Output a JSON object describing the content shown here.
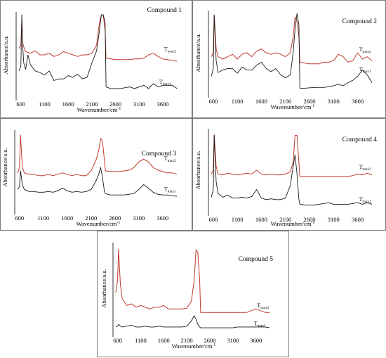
{
  "chart_data": [
    {
      "type": "line",
      "title": "Compound 1",
      "xlabel": "Wavenumber/cm",
      "xlabel_sup": "-1",
      "ylabel": "Absorbance/a.u.",
      "xticks": [
        600,
        1100,
        1600,
        2100,
        2600,
        3100,
        3600
      ],
      "xlim": [
        500,
        4000
      ],
      "ylim": [
        0,
        1
      ],
      "series_labels": [
        {
          "main": "T",
          "sub": "max2"
        },
        {
          "main": "T",
          "sub": "max1"
        }
      ],
      "series": [
        {
          "color": "#c0392b",
          "x": [
            560,
            600,
            620,
            640,
            660,
            700,
            800,
            900,
            1000,
            1100,
            1200,
            1300,
            1400,
            1500,
            1600,
            1700,
            1800,
            1900,
            2000,
            2100,
            2200,
            2260,
            2300,
            2340,
            2380,
            2400,
            2500,
            2600,
            2700,
            2800,
            2900,
            3000,
            3100,
            3200,
            3300,
            3400,
            3500,
            3600,
            3700,
            3800,
            3900
          ],
          "y": [
            0.58,
            0.62,
            0.92,
            0.65,
            0.6,
            0.54,
            0.52,
            0.55,
            0.5,
            0.5,
            0.52,
            0.48,
            0.5,
            0.54,
            0.52,
            0.5,
            0.48,
            0.5,
            0.5,
            0.52,
            0.62,
            0.9,
            1.0,
            1.0,
            0.8,
            0.46,
            0.45,
            0.44,
            0.44,
            0.44,
            0.44,
            0.45,
            0.45,
            0.46,
            0.5,
            0.52,
            0.48,
            0.45,
            0.44,
            0.43,
            0.42
          ]
        },
        {
          "color": "#1a1a1a",
          "x": [
            560,
            600,
            620,
            640,
            660,
            700,
            750,
            800,
            900,
            1000,
            1100,
            1200,
            1300,
            1400,
            1500,
            1600,
            1700,
            1800,
            1900,
            2000,
            2100,
            2200,
            2260,
            2300,
            2340,
            2380,
            2400,
            2500,
            2700,
            2900,
            3000,
            3100,
            3200,
            3300,
            3400,
            3500,
            3600,
            3700,
            3800,
            3900
          ],
          "y": [
            0.3,
            0.35,
            1.0,
            0.6,
            0.4,
            0.32,
            0.5,
            0.38,
            0.3,
            0.28,
            0.25,
            0.3,
            0.18,
            0.2,
            0.2,
            0.24,
            0.22,
            0.26,
            0.2,
            0.22,
            0.4,
            0.55,
            0.8,
            1.0,
            1.0,
            0.9,
            0.1,
            0.08,
            0.08,
            0.1,
            0.08,
            0.1,
            0.12,
            0.08,
            0.14,
            0.1,
            0.12,
            0.12,
            0.12,
            0.08
          ]
        }
      ]
    },
    {
      "type": "line",
      "title": "Compound 2",
      "xlabel": "Wavenumber/cm",
      "xlabel_sup": "-1",
      "ylabel": "Absorbance/a.u.",
      "xticks": [
        600,
        1100,
        1600,
        2100,
        2600,
        3100,
        3600
      ],
      "xlim": [
        500,
        4000
      ],
      "ylim": [
        0,
        1
      ],
      "series_labels": [
        {
          "main": "T",
          "sub": "max2"
        },
        {
          "main": "T",
          "sub": "max1"
        }
      ],
      "series": [
        {
          "color": "#c0392b",
          "x": [
            560,
            600,
            620,
            660,
            700,
            800,
            900,
            1000,
            1100,
            1200,
            1300,
            1400,
            1500,
            1600,
            1700,
            1800,
            1900,
            2000,
            2100,
            2200,
            2260,
            2300,
            2340,
            2380,
            2400,
            2500,
            2600,
            2700,
            2800,
            2900,
            3000,
            3100,
            3200,
            3300,
            3400,
            3500,
            3600,
            3700,
            3800,
            3900
          ],
          "y": [
            0.45,
            0.5,
            0.98,
            0.55,
            0.45,
            0.42,
            0.45,
            0.48,
            0.42,
            0.48,
            0.5,
            0.45,
            0.52,
            0.55,
            0.5,
            0.48,
            0.5,
            0.48,
            0.45,
            0.5,
            0.7,
            0.95,
            0.9,
            0.7,
            0.38,
            0.37,
            0.36,
            0.36,
            0.36,
            0.38,
            0.38,
            0.4,
            0.48,
            0.45,
            0.38,
            0.4,
            0.5,
            0.42,
            0.45,
            0.4
          ]
        },
        {
          "color": "#1a1a1a",
          "x": [
            560,
            600,
            620,
            660,
            700,
            800,
            900,
            1000,
            1100,
            1200,
            1300,
            1400,
            1500,
            1600,
            1700,
            1800,
            1900,
            2000,
            2100,
            2200,
            2260,
            2300,
            2340,
            2380,
            2400,
            2500,
            2700,
            2900,
            3000,
            3100,
            3200,
            3300,
            3400,
            3500,
            3600,
            3700,
            3800,
            3900
          ],
          "y": [
            0.2,
            0.3,
            0.98,
            0.4,
            0.25,
            0.28,
            0.3,
            0.3,
            0.24,
            0.32,
            0.28,
            0.28,
            0.34,
            0.38,
            0.3,
            0.26,
            0.3,
            0.22,
            0.18,
            0.22,
            0.5,
            0.8,
            1.0,
            0.85,
            0.05,
            0.05,
            0.06,
            0.06,
            0.07,
            0.08,
            0.1,
            0.08,
            0.12,
            0.15,
            0.2,
            0.28,
            0.22,
            0.12
          ]
        }
      ]
    },
    {
      "type": "line",
      "title": "Compound 3",
      "xlabel": "Wavenumber/cm",
      "xlabel_sup": "-1",
      "ylabel": "Absorbance/a.u.",
      "xticks": [
        600,
        1100,
        1600,
        2100,
        2600,
        3100,
        3600
      ],
      "xlim": [
        500,
        4000
      ],
      "ylim": [
        0,
        1
      ],
      "series_labels": [
        {
          "main": "T",
          "sub": "max2"
        },
        {
          "main": "T",
          "sub": "max1"
        }
      ],
      "series": [
        {
          "color": "#c0392b",
          "x": [
            560,
            600,
            620,
            660,
            700,
            800,
            900,
            1000,
            1100,
            1200,
            1300,
            1400,
            1500,
            1600,
            1700,
            1800,
            1900,
            2000,
            2100,
            2200,
            2260,
            2300,
            2340,
            2380,
            2400,
            2500,
            2600,
            2700,
            2800,
            2900,
            3000,
            3100,
            3200,
            3300,
            3400,
            3500,
            3600,
            3700,
            3800,
            3900
          ],
          "y": [
            0.42,
            0.5,
            0.97,
            0.5,
            0.42,
            0.4,
            0.4,
            0.38,
            0.38,
            0.4,
            0.38,
            0.4,
            0.42,
            0.4,
            0.38,
            0.4,
            0.38,
            0.38,
            0.45,
            0.6,
            0.75,
            0.92,
            0.88,
            0.6,
            0.45,
            0.44,
            0.44,
            0.44,
            0.45,
            0.46,
            0.5,
            0.58,
            0.62,
            0.58,
            0.5,
            0.46,
            0.44,
            0.42,
            0.42,
            0.4
          ]
        },
        {
          "color": "#1a1a1a",
          "x": [
            560,
            600,
            620,
            660,
            700,
            800,
            900,
            1000,
            1100,
            1200,
            1300,
            1400,
            1500,
            1600,
            1700,
            1800,
            1900,
            2000,
            2100,
            2200,
            2260,
            2300,
            2340,
            2380,
            2400,
            2500,
            2600,
            2700,
            2800,
            2900,
            3000,
            3100,
            3200,
            3300,
            3400,
            3500,
            3600,
            3700,
            3800,
            3900
          ],
          "y": [
            0.18,
            0.22,
            0.45,
            0.25,
            0.18,
            0.15,
            0.15,
            0.14,
            0.14,
            0.15,
            0.14,
            0.16,
            0.2,
            0.16,
            0.14,
            0.15,
            0.14,
            0.15,
            0.18,
            0.3,
            0.4,
            0.5,
            0.35,
            0.15,
            0.12,
            0.1,
            0.1,
            0.1,
            0.1,
            0.11,
            0.12,
            0.18,
            0.25,
            0.2,
            0.14,
            0.11,
            0.1,
            0.1,
            0.09,
            0.08
          ]
        }
      ]
    },
    {
      "type": "line",
      "title": "Compound 4",
      "xlabel": "Wavenumber/cm",
      "xlabel_sup": "-1",
      "ylabel": "Absorbance/a.u.",
      "xticks": [
        600,
        1100,
        1600,
        2100,
        2600,
        3100,
        3600
      ],
      "xlim": [
        500,
        4000
      ],
      "ylim": [
        0,
        1
      ],
      "series_labels": [
        {
          "main": "T",
          "sub": "max2"
        },
        {
          "main": "T",
          "sub": "max1"
        }
      ],
      "series": [
        {
          "color": "#c0392b",
          "x": [
            560,
            600,
            620,
            660,
            700,
            800,
            900,
            1000,
            1100,
            1200,
            1300,
            1400,
            1500,
            1600,
            1700,
            1800,
            1900,
            2000,
            2100,
            2200,
            2260,
            2300,
            2340,
            2380,
            2400,
            2500,
            2600,
            2700,
            2800,
            2900,
            3000,
            3100,
            3200,
            3300,
            3400,
            3500,
            3600,
            3700,
            3800,
            3900
          ],
          "y": [
            0.45,
            0.5,
            0.96,
            0.55,
            0.45,
            0.44,
            0.46,
            0.45,
            0.44,
            0.45,
            0.46,
            0.45,
            0.5,
            0.45,
            0.44,
            0.45,
            0.44,
            0.44,
            0.45,
            0.48,
            0.6,
            0.95,
            0.95,
            0.6,
            0.42,
            0.42,
            0.42,
            0.42,
            0.42,
            0.42,
            0.42,
            0.42,
            0.42,
            0.42,
            0.42,
            0.43,
            0.45,
            0.44,
            0.46,
            0.44
          ]
        },
        {
          "color": "#1a1a1a",
          "x": [
            560,
            600,
            620,
            660,
            700,
            800,
            900,
            1000,
            1100,
            1200,
            1300,
            1400,
            1500,
            1600,
            1700,
            1800,
            1900,
            2000,
            2100,
            2200,
            2260,
            2300,
            2340,
            2380,
            2400,
            2500,
            2600,
            2700,
            2800,
            2900,
            3000,
            3100,
            3200,
            3300,
            3400,
            3500,
            3600,
            3700,
            3800,
            3900
          ],
          "y": [
            0.15,
            0.25,
            0.95,
            0.35,
            0.2,
            0.15,
            0.18,
            0.14,
            0.14,
            0.15,
            0.14,
            0.16,
            0.25,
            0.14,
            0.12,
            0.13,
            0.12,
            0.12,
            0.14,
            0.3,
            0.55,
            0.7,
            0.45,
            0.12,
            0.06,
            0.05,
            0.05,
            0.05,
            0.06,
            0.07,
            0.08,
            0.06,
            0.06,
            0.06,
            0.06,
            0.07,
            0.08,
            0.06,
            0.08,
            0.06
          ]
        }
      ]
    },
    {
      "type": "line",
      "title": "Compound 5",
      "xlabel": "Wavenumber/cm",
      "xlabel_sup": "-1",
      "ylabel": "Absorbance/a.u.",
      "xticks": [
        600,
        1100,
        1600,
        2100,
        2600,
        3100,
        3600
      ],
      "xlim": [
        500,
        4000
      ],
      "ylim": [
        0,
        1
      ],
      "series_labels": [
        {
          "main": "T",
          "sub": "max2"
        },
        {
          "main": "T",
          "sub": "max1"
        }
      ],
      "series": [
        {
          "color": "#c0392b",
          "x": [
            560,
            600,
            620,
            660,
            700,
            800,
            900,
            1000,
            1100,
            1200,
            1300,
            1400,
            1500,
            1600,
            1700,
            1800,
            1900,
            2000,
            2100,
            2200,
            2260,
            2300,
            2340,
            2380,
            2400,
            2500,
            2600,
            2700,
            2800,
            2900,
            3000,
            3100,
            3200,
            3300,
            3400,
            3500,
            3600,
            3700,
            3800,
            3900
          ],
          "y": [
            0.45,
            0.6,
            0.96,
            0.55,
            0.38,
            0.3,
            0.32,
            0.28,
            0.3,
            0.28,
            0.26,
            0.28,
            0.28,
            0.3,
            0.26,
            0.26,
            0.26,
            0.26,
            0.27,
            0.35,
            0.6,
            0.95,
            0.92,
            0.6,
            0.22,
            0.22,
            0.22,
            0.22,
            0.22,
            0.22,
            0.22,
            0.22,
            0.22,
            0.22,
            0.22,
            0.24,
            0.26,
            0.24,
            0.22,
            0.22
          ]
        },
        {
          "color": "#1a1a1a",
          "x": [
            560,
            600,
            620,
            660,
            700,
            800,
            900,
            1000,
            1100,
            1200,
            1300,
            1400,
            1500,
            1600,
            1700,
            1800,
            1900,
            2000,
            2100,
            2200,
            2260,
            2300,
            2340,
            2380,
            2400,
            2500,
            2600,
            2700,
            2800,
            2900,
            3000,
            3100,
            3200,
            3300,
            3400,
            3500,
            3600,
            3700,
            3800,
            3900
          ],
          "y": [
            0.05,
            0.06,
            0.08,
            0.06,
            0.05,
            0.06,
            0.07,
            0.05,
            0.05,
            0.06,
            0.05,
            0.05,
            0.06,
            0.05,
            0.05,
            0.05,
            0.05,
            0.05,
            0.06,
            0.12,
            0.18,
            0.14,
            0.08,
            0.05,
            0.04,
            0.04,
            0.04,
            0.04,
            0.04,
            0.04,
            0.04,
            0.04,
            0.05,
            0.05,
            0.05,
            0.05,
            0.05,
            0.05,
            0.05,
            0.04
          ]
        }
      ]
    }
  ]
}
